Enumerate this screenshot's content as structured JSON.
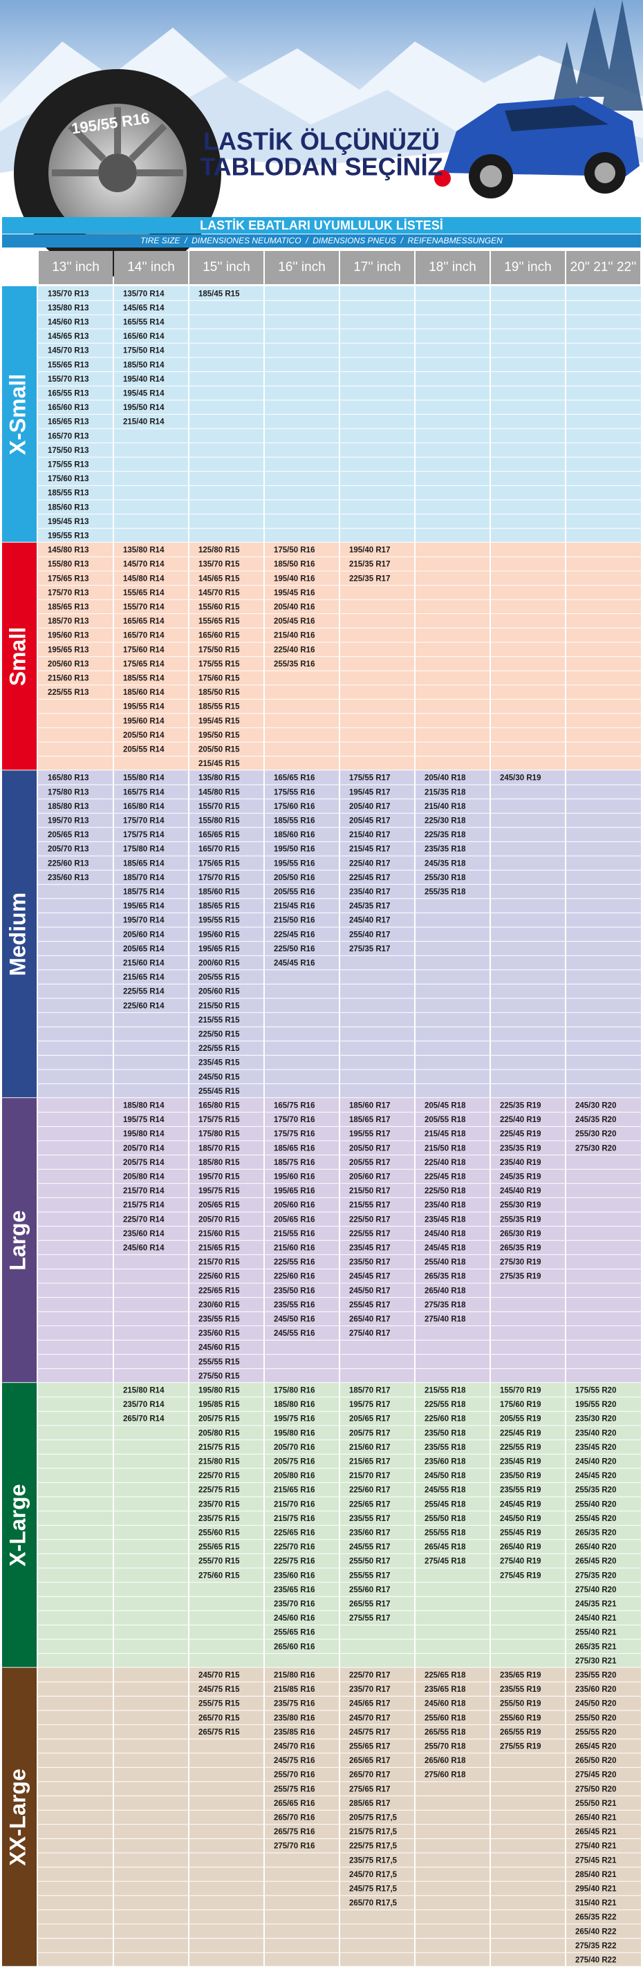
{
  "header": {
    "title_lines": [
      "LASTİK ÖLÇÜNÜZÜ",
      "TABLODAN SEÇİNİZ"
    ],
    "tire_text": "195/55 R16"
  },
  "table": {
    "title": "LASTİK EBATLARI UYUMLULUK LİSTESİ",
    "subtitle": "TIRE SIZE  /  DIMENSIONES NEUMATICO  /  DIMENSIONS PNEUS  /  REIFENABMESSUNGEN",
    "columns": [
      "13'' inch",
      "14'' inch",
      "15'' inch",
      "16'' inch",
      "17'' inch",
      "18'' inch",
      "19'' inch",
      "20'' 21'' 22''"
    ],
    "groups": [
      {
        "name": "X-Small",
        "color": "#29a8e0",
        "background": "#cde8f5",
        "columns": [
          [
            "135/70 R13",
            "135/80 R13",
            "145/60 R13",
            "145/65 R13",
            "145/70 R13",
            "155/65 R13",
            "155/70 R13",
            "165/55 R13",
            "165/60 R13",
            "165/65 R13",
            "165/70 R13",
            "175/50 R13",
            "175/55 R13",
            "175/60 R13",
            "185/55 R13",
            "185/60 R13",
            "195/45 R13",
            "195/55 R13"
          ],
          [
            "135/70 R14",
            "145/65 R14",
            "165/55 R14",
            "165/60 R14",
            "175/50 R14",
            "185/50 R14",
            "195/40 R14",
            "195/45 R14",
            "195/50 R14",
            "215/40 R14"
          ],
          [
            "185/45 R15"
          ],
          [],
          [],
          [],
          [],
          []
        ]
      },
      {
        "name": "Small",
        "color": "#e3001b",
        "background": "#fcd8c6",
        "columns": [
          [
            "145/80 R13",
            "155/80 R13",
            "175/65 R13",
            "175/70 R13",
            "185/65 R13",
            "185/70 R13",
            "195/60 R13",
            "195/65 R13",
            "205/60 R13",
            "215/60 R13",
            "225/55 R13"
          ],
          [
            "135/80 R14",
            "145/70 R14",
            "145/80 R14",
            "155/65 R14",
            "155/70 R14",
            "165/65 R14",
            "165/70 R14",
            "175/60 R14",
            "175/65 R14",
            "185/55 R14",
            "185/60 R14",
            "195/55 R14",
            "195/60 R14",
            "205/50 R14",
            "205/55 R14"
          ],
          [
            "125/80 R15",
            "135/70 R15",
            "145/65 R15",
            "145/70 R15",
            "155/60 R15",
            "155/65 R15",
            "165/60 R15",
            "175/50 R15",
            "175/55 R15",
            "175/60 R15",
            "185/50 R15",
            "185/55 R15",
            "195/45 R15",
            "195/50 R15",
            "205/50 R15",
            "215/45 R15"
          ],
          [
            "175/50 R16",
            "185/50 R16",
            "195/40 R16",
            "195/45 R16",
            "205/40 R16",
            "205/45 R16",
            "215/40 R16",
            "225/40 R16",
            "255/35 R16"
          ],
          [
            "195/40 R17",
            "215/35 R17",
            "225/35 R17"
          ],
          [],
          [],
          []
        ]
      },
      {
        "name": "Medium",
        "color": "#2e4a8e",
        "background": "#cfd0e8",
        "columns": [
          [
            "165/80 R13",
            "175/80 R13",
            "185/80 R13",
            "195/70 R13",
            "205/65 R13",
            "205/70 R13",
            "225/60 R13",
            "235/60 R13"
          ],
          [
            "155/80 R14",
            "165/75 R14",
            "165/80 R14",
            "175/70 R14",
            "175/75 R14",
            "175/80 R14",
            "185/65 R14",
            "185/70 R14",
            "185/75 R14",
            "195/65 R14",
            "195/70 R14",
            "205/60 R14",
            "205/65 R14",
            "215/60 R14",
            "215/65 R14",
            "225/55 R14",
            "225/60 R14"
          ],
          [
            "135/80 R15",
            "145/80 R15",
            "155/70 R15",
            "155/80 R15",
            "165/65 R15",
            "165/70 R15",
            "175/65 R15",
            "175/70 R15",
            "185/60 R15",
            "185/65 R15",
            "195/55 R15",
            "195/60 R15",
            "195/65 R15",
            "200/60 R15",
            "205/55 R15",
            "205/60 R15",
            "215/50 R15",
            "215/55 R15",
            "225/50 R15",
            "225/55 R15",
            "235/45 R15",
            "245/50 R15",
            "255/45 R15"
          ],
          [
            "165/65 R16",
            "175/55 R16",
            "175/60 R16",
            "185/55 R16",
            "185/60 R16",
            "195/50 R16",
            "195/55 R16",
            "205/50 R16",
            "205/55 R16",
            "215/45 R16",
            "215/50 R16",
            "225/45 R16",
            "225/50 R16",
            "245/45 R16"
          ],
          [
            "175/55 R17",
            "195/45 R17",
            "205/40 R17",
            "205/45 R17",
            "215/40 R17",
            "215/45 R17",
            "225/40 R17",
            "225/45 R17",
            "235/40 R17",
            "245/35 R17",
            "245/40 R17",
            "255/40 R17",
            "275/35 R17"
          ],
          [
            "205/40 R18",
            "215/35 R18",
            "215/40 R18",
            "225/30 R18",
            "225/35 R18",
            "235/35 R18",
            "245/35 R18",
            "255/30 R18",
            "255/35 R18"
          ],
          [
            "245/30 R19"
          ],
          []
        ]
      },
      {
        "name": "Large",
        "color": "#5b4580",
        "background": "#d8cee5",
        "columns": [
          [],
          [
            "185/80 R14",
            "195/75 R14",
            "195/80 R14",
            "205/70 R14",
            "205/75 R14",
            "205/80 R14",
            "215/70 R14",
            "215/75 R14",
            "225/70 R14",
            "235/60 R14",
            "245/60 R14"
          ],
          [
            "165/80 R15",
            "175/75 R15",
            "175/80 R15",
            "185/70 R15",
            "185/80 R15",
            "195/70 R15",
            "195/75 R15",
            "205/65 R15",
            "205/70 R15",
            "215/60 R15",
            "215/65 R15",
            "215/70 R15",
            "225/60 R15",
            "225/65 R15",
            "230/60 R15",
            "235/55 R15",
            "235/60 R15",
            "245/60 R15",
            "255/55 R15",
            "275/50 R15"
          ],
          [
            "165/75 R16",
            "175/70 R16",
            "175/75 R16",
            "185/65 R16",
            "185/75 R16",
            "195/60 R16",
            "195/65 R16",
            "205/60 R16",
            "205/65 R16",
            "215/55 R16",
            "215/60 R16",
            "225/55 R16",
            "225/60 R16",
            "235/50 R16",
            "235/55 R16",
            "245/50 R16",
            "245/55 R16"
          ],
          [
            "185/60 R17",
            "185/65 R17",
            "195/55 R17",
            "205/50 R17",
            "205/55 R17",
            "205/60 R17",
            "215/50 R17",
            "215/55 R17",
            "225/50 R17",
            "225/55 R17",
            "235/45 R17",
            "235/50 R17",
            "245/45 R17",
            "245/50 R17",
            "255/45 R17",
            "265/40 R17",
            "275/40 R17"
          ],
          [
            "205/45 R18",
            "205/55 R18",
            "215/45 R18",
            "215/50 R18",
            "225/40 R18",
            "225/45 R18",
            "225/50 R18",
            "235/40 R18",
            "235/45 R18",
            "245/40 R18",
            "245/45 R18",
            "255/40 R18",
            "265/35 R18",
            "265/40 R18",
            "275/35 R18",
            "275/40 R18"
          ],
          [
            "225/35 R19",
            "225/40 R19",
            "225/45 R19",
            "235/35 R19",
            "235/40 R19",
            "245/35 R19",
            "245/40 R19",
            "255/30 R19",
            "255/35 R19",
            "265/30 R19",
            "265/35 R19",
            "275/30 R19",
            "275/35 R19"
          ],
          [
            "245/30 R20",
            "245/35 R20",
            "255/30 R20",
            "275/30 R20"
          ]
        ]
      },
      {
        "name": "X-Large",
        "color": "#006b3a",
        "background": "#d6e8d2",
        "columns": [
          [],
          [
            "215/80 R14",
            "235/70 R14",
            "265/70 R14"
          ],
          [
            "195/80 R15",
            "195/85 R15",
            "205/75 R15",
            "205/80 R15",
            "215/75 R15",
            "215/80 R15",
            "225/70 R15",
            "225/75 R15",
            "235/70 R15",
            "235/75 R15",
            "255/60 R15",
            "255/65 R15",
            "255/70 R15",
            "275/60 R15"
          ],
          [
            "175/80 R16",
            "185/80 R16",
            "195/75 R16",
            "195/80 R16",
            "205/70 R16",
            "205/75 R16",
            "205/80 R16",
            "215/65 R16",
            "215/70 R16",
            "215/75 R16",
            "225/65 R16",
            "225/70 R16",
            "225/75 R16",
            "235/60 R16",
            "235/65 R16",
            "235/70 R16",
            "245/60 R16",
            "255/65 R16",
            "265/60 R16"
          ],
          [
            "185/70 R17",
            "195/75 R17",
            "205/65 R17",
            "205/75 R17",
            "215/60 R17",
            "215/65 R17",
            "215/70 R17",
            "225/60 R17",
            "225/65 R17",
            "235/55 R17",
            "235/60 R17",
            "245/55 R17",
            "255/50 R17",
            "255/55 R17",
            "255/60 R17",
            "265/55 R17",
            "275/55 R17"
          ],
          [
            "215/55 R18",
            "225/55 R18",
            "225/60 R18",
            "235/50 R18",
            "235/55 R18",
            "235/60 R18",
            "245/50 R18",
            "245/55 R18",
            "255/45 R18",
            "255/50 R18",
            "255/55 R18",
            "265/45 R18",
            "275/45 R18"
          ],
          [
            "155/70 R19",
            "175/60 R19",
            "205/55 R19",
            "225/45 R19",
            "225/55 R19",
            "235/45 R19",
            "235/50 R19",
            "235/55 R19",
            "245/45 R19",
            "245/50 R19",
            "255/45 R19",
            "265/40 R19",
            "275/40 R19",
            "275/45 R19"
          ],
          [
            "175/55 R20",
            "195/55 R20",
            "235/30 R20",
            "235/40 R20",
            "235/45 R20",
            "245/40 R20",
            "245/45 R20",
            "255/35 R20",
            "255/40 R20",
            "255/45 R20",
            "265/35 R20",
            "265/40 R20",
            "265/45 R20",
            "275/35 R20",
            "275/40 R20",
            "245/35 R21",
            "245/40 R21",
            "255/40 R21",
            "265/35 R21",
            "275/30 R21"
          ]
        ]
      },
      {
        "name": "XX-Large",
        "color": "#6b3f1a",
        "background": "#e3d5c5",
        "columns": [
          [],
          [],
          [
            "245/70 R15",
            "245/75 R15",
            "255/75 R15",
            "265/70 R15",
            "265/75 R15"
          ],
          [
            "215/80 R16",
            "215/85 R16",
            "235/75 R16",
            "235/80 R16",
            "235/85 R16",
            "245/70 R16",
            "245/75 R16",
            "255/70 R16",
            "255/75 R16",
            "265/65 R16",
            "265/70 R16",
            "265/75 R16",
            "275/70 R16"
          ],
          [
            "225/70 R17",
            "235/70 R17",
            "245/65 R17",
            "245/70 R17",
            "245/75 R17",
            "255/65 R17",
            "265/65 R17",
            "265/70 R17",
            "275/65 R17",
            "285/65 R17",
            "205/75 R17,5",
            "215/75 R17,5",
            "225/75 R17,5",
            "235/75 R17,5",
            "245/70 R17,5",
            "245/75 R17,5",
            "265/70 R17,5"
          ],
          [
            "225/65 R18",
            "235/65 R18",
            "245/60 R18",
            "255/60 R18",
            "265/55 R18",
            "255/70 R18",
            "265/60 R18",
            "275/60 R18"
          ],
          [
            "235/65 R19",
            "235/55 R19",
            "255/50 R19",
            "255/60 R19",
            "265/55 R19",
            "275/55 R19"
          ],
          [
            "235/55 R20",
            "235/60 R20",
            "245/50 R20",
            "255/50 R20",
            "255/55 R20",
            "265/45 R20",
            "265/50 R20",
            "275/45 R20",
            "275/50 R20",
            "255/50 R21",
            "265/40 R21",
            "265/45 R21",
            "275/40 R21",
            "275/45 R21",
            "285/40 R21",
            "295/40 R21",
            "315/40 R21",
            "265/35 R22",
            "265/40 R22",
            "275/35 R22",
            "275/40 R22"
          ]
        ]
      }
    ]
  }
}
